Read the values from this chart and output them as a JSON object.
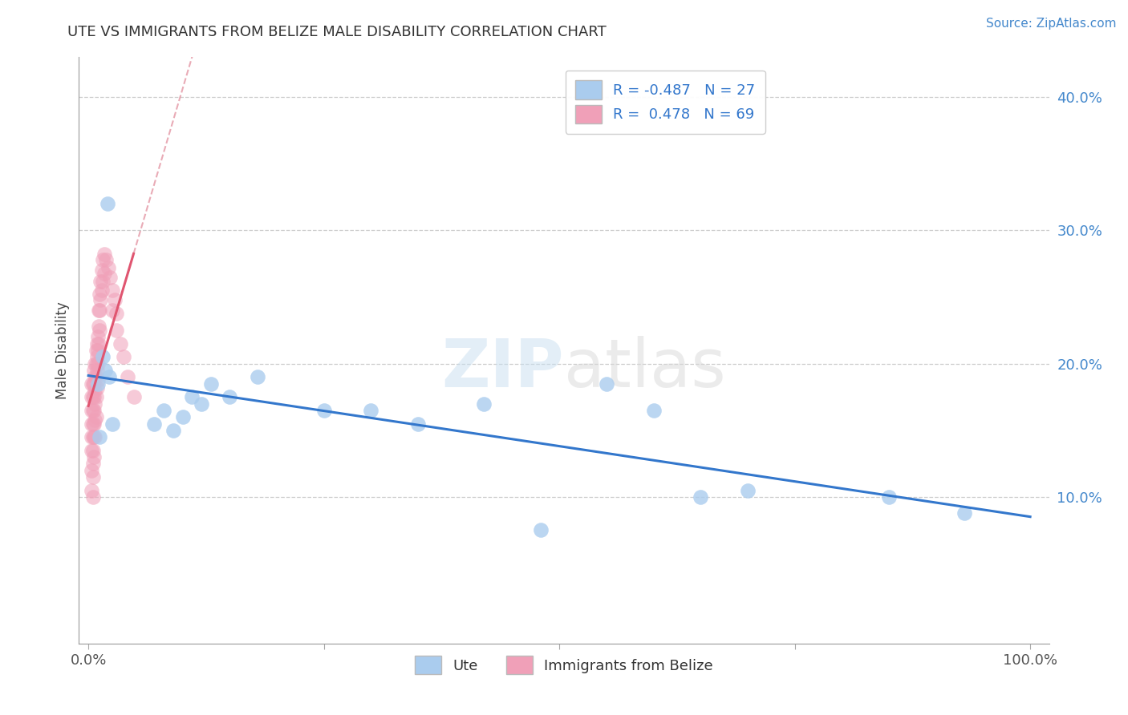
{
  "title": "UTE VS IMMIGRANTS FROM BELIZE MALE DISABILITY CORRELATION CHART",
  "source": "Source: ZipAtlas.com",
  "ylabel": "Male Disability",
  "watermark_zip": "ZIP",
  "watermark_atlas": "atlas",
  "ute_R": -0.487,
  "ute_N": 27,
  "belize_R": 0.478,
  "belize_N": 69,
  "xlim": [
    -0.01,
    1.02
  ],
  "ylim": [
    -0.01,
    0.43
  ],
  "ute_color": "#aaccee",
  "belize_color": "#f0a0b8",
  "ute_line_color": "#3377cc",
  "belize_line_color": "#e05570",
  "belize_dash_color": "#e08898",
  "legend_label_ute": "Ute",
  "legend_label_belize": "Immigrants from Belize",
  "ute_points_x": [
    0.02,
    0.015,
    0.018,
    0.01,
    0.022,
    0.025,
    0.012,
    0.08,
    0.07,
    0.09,
    0.1,
    0.11,
    0.12,
    0.13,
    0.15,
    0.18,
    0.25,
    0.3,
    0.35,
    0.42,
    0.48,
    0.55,
    0.6,
    0.65,
    0.7,
    0.85,
    0.93
  ],
  "ute_points_y": [
    0.32,
    0.205,
    0.195,
    0.185,
    0.19,
    0.155,
    0.145,
    0.165,
    0.155,
    0.15,
    0.16,
    0.175,
    0.17,
    0.185,
    0.175,
    0.19,
    0.165,
    0.165,
    0.155,
    0.17,
    0.075,
    0.185,
    0.165,
    0.1,
    0.105,
    0.1,
    0.088
  ],
  "belize_points_x": [
    0.003,
    0.003,
    0.003,
    0.003,
    0.003,
    0.003,
    0.003,
    0.003,
    0.005,
    0.005,
    0.005,
    0.005,
    0.005,
    0.005,
    0.005,
    0.005,
    0.005,
    0.006,
    0.006,
    0.006,
    0.006,
    0.006,
    0.006,
    0.006,
    0.007,
    0.007,
    0.007,
    0.007,
    0.007,
    0.007,
    0.008,
    0.008,
    0.008,
    0.008,
    0.008,
    0.009,
    0.009,
    0.009,
    0.009,
    0.01,
    0.01,
    0.01,
    0.01,
    0.011,
    0.011,
    0.011,
    0.012,
    0.012,
    0.012,
    0.013,
    0.013,
    0.014,
    0.014,
    0.015,
    0.015,
    0.017,
    0.017,
    0.019,
    0.021,
    0.023,
    0.025,
    0.025,
    0.028,
    0.03,
    0.03,
    0.034,
    0.037,
    0.042,
    0.048
  ],
  "belize_points_y": [
    0.185,
    0.175,
    0.165,
    0.155,
    0.145,
    0.135,
    0.12,
    0.105,
    0.185,
    0.175,
    0.165,
    0.155,
    0.145,
    0.135,
    0.125,
    0.115,
    0.1,
    0.195,
    0.185,
    0.175,
    0.165,
    0.155,
    0.145,
    0.13,
    0.2,
    0.19,
    0.18,
    0.17,
    0.158,
    0.145,
    0.21,
    0.2,
    0.19,
    0.175,
    0.16,
    0.215,
    0.205,
    0.195,
    0.182,
    0.22,
    0.21,
    0.2,
    0.188,
    0.24,
    0.228,
    0.215,
    0.252,
    0.24,
    0.225,
    0.262,
    0.248,
    0.27,
    0.255,
    0.278,
    0.262,
    0.282,
    0.268,
    0.278,
    0.272,
    0.265,
    0.255,
    0.24,
    0.248,
    0.238,
    0.225,
    0.215,
    0.205,
    0.19,
    0.175
  ]
}
